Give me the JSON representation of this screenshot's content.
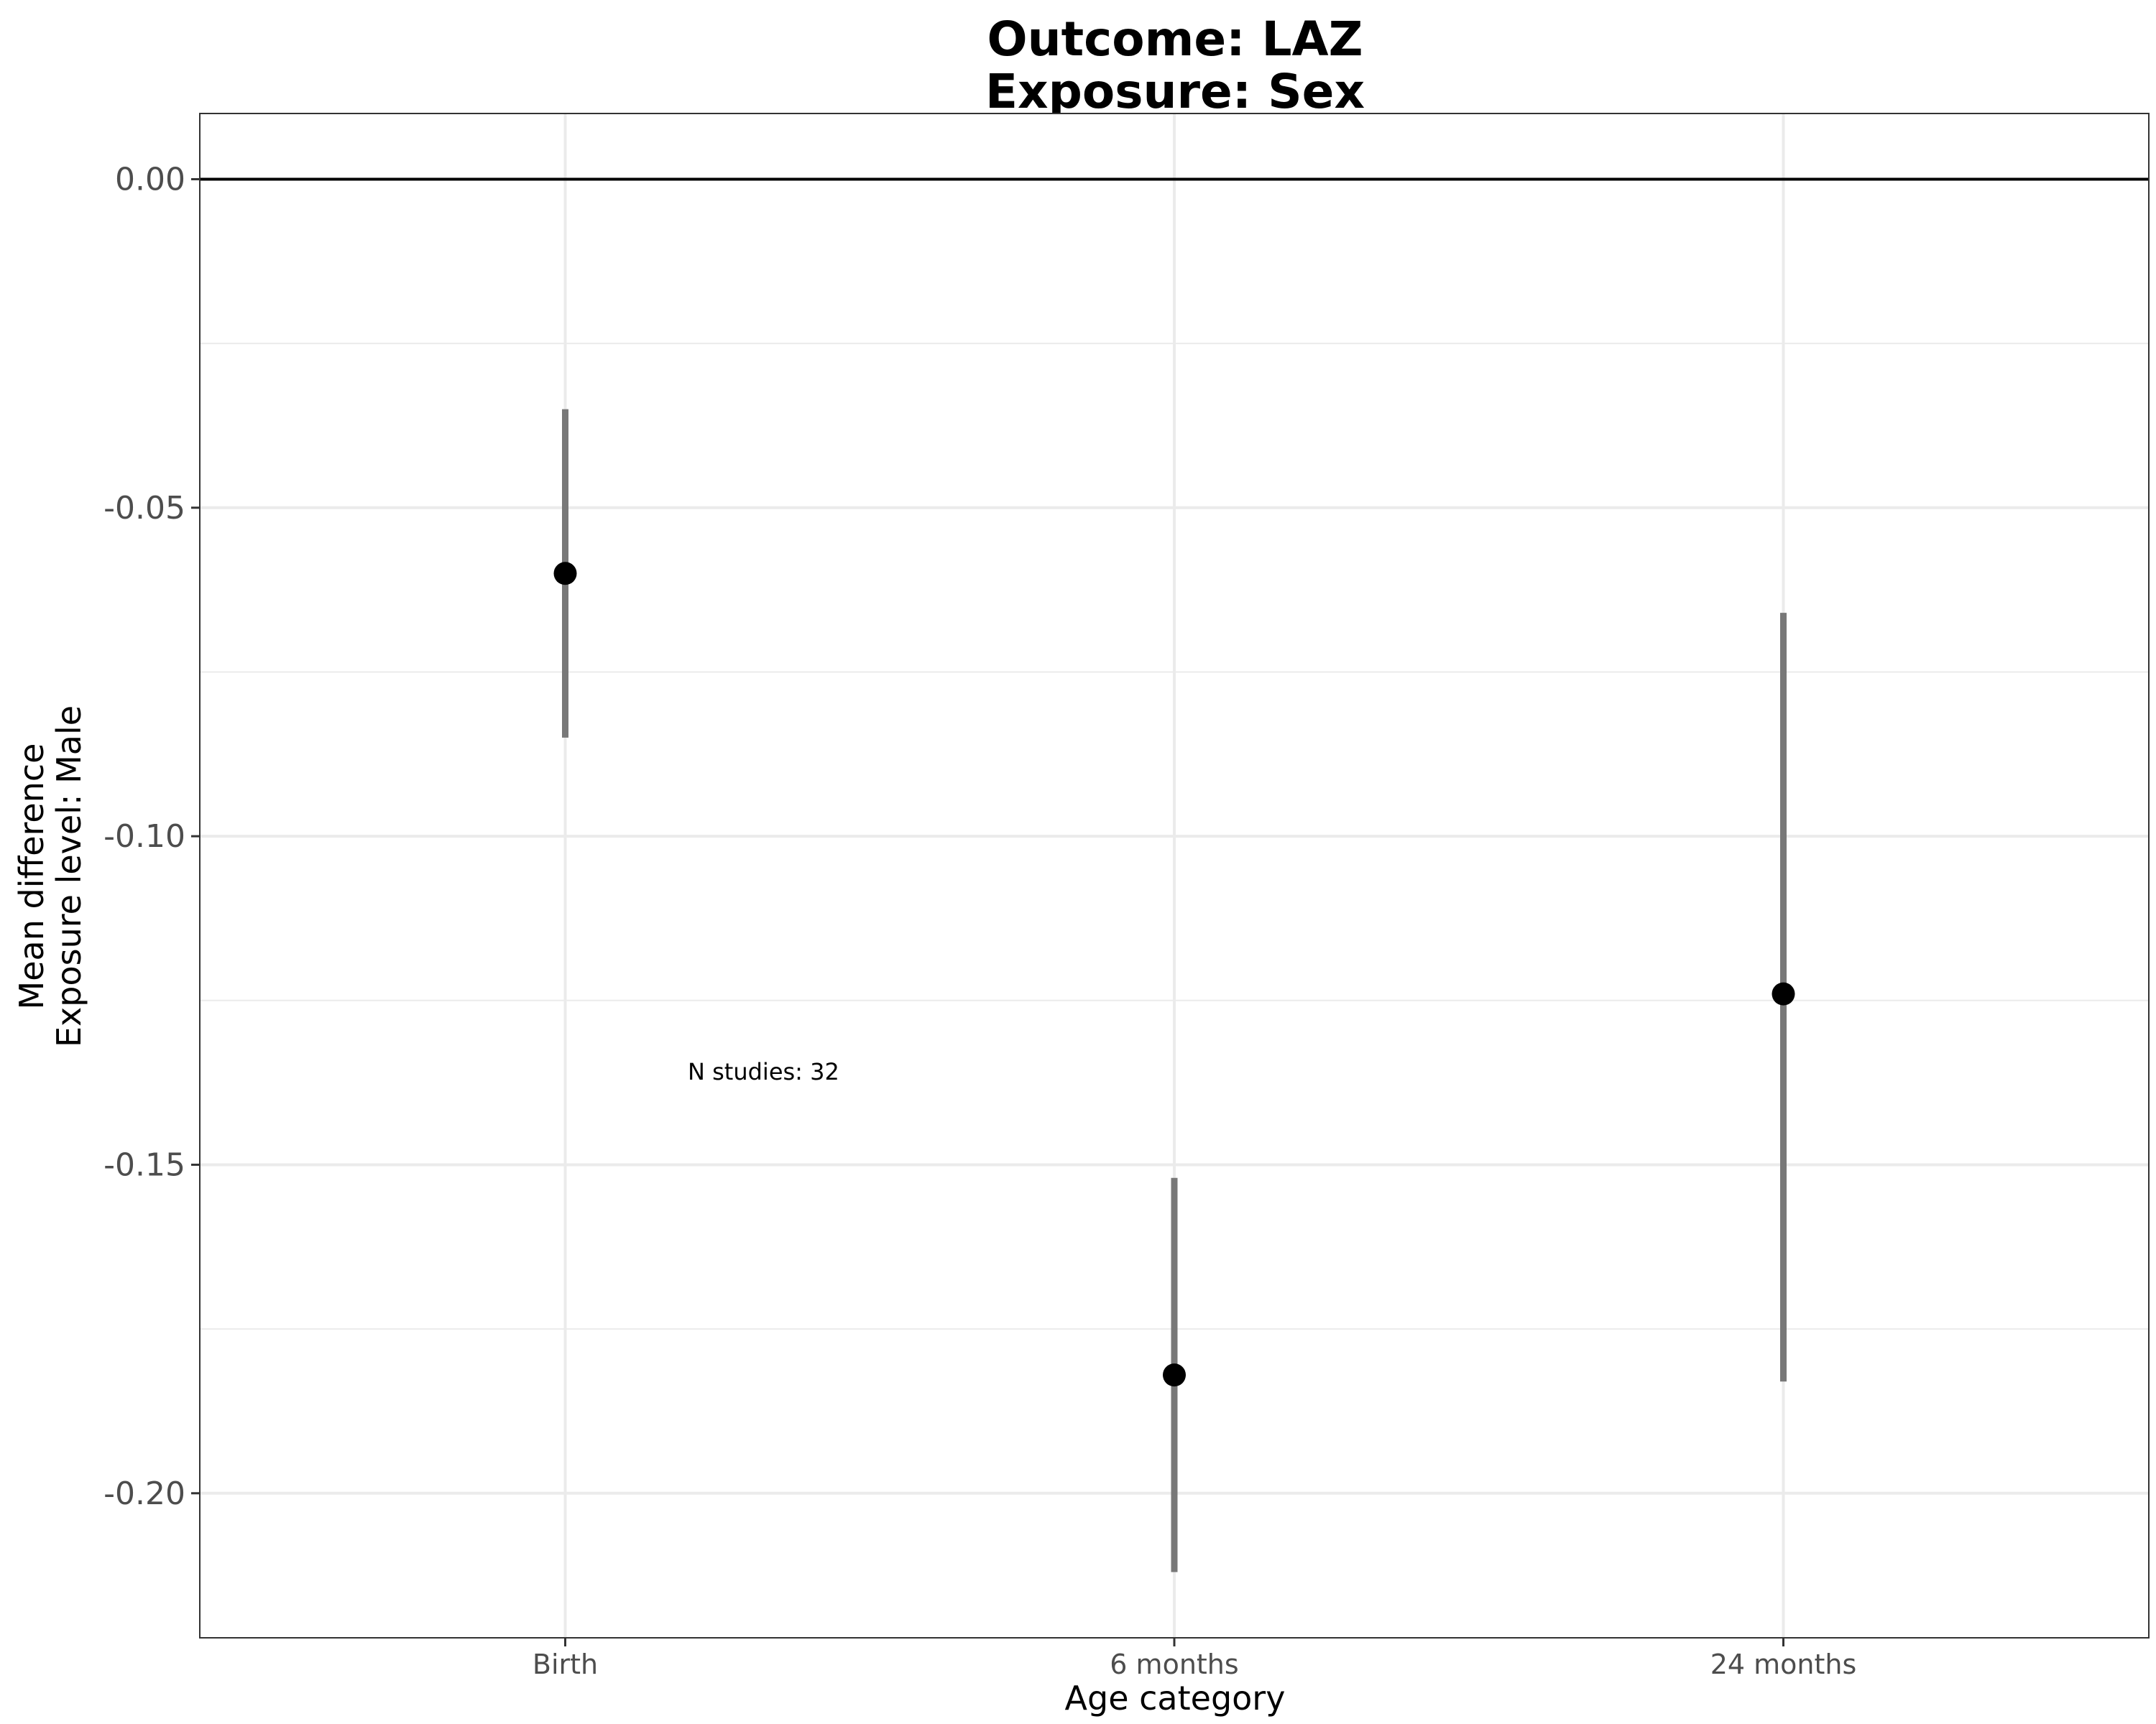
{
  "chart_data": {
    "type": "scatter",
    "title": [
      "Outcome: LAZ",
      "Exposure: Sex"
    ],
    "xlabel": "Age category",
    "ylabel": [
      "Mean difference",
      "Exposure level: Male"
    ],
    "categories": [
      "Birth",
      "6 months",
      "24 months"
    ],
    "series": [
      {
        "values": [
          -0.06,
          -0.182,
          -0.124
        ],
        "lower": [
          -0.085,
          -0.212,
          -0.183
        ],
        "upper": [
          -0.035,
          -0.152,
          -0.066
        ]
      }
    ],
    "ylim": [
      -0.222,
      0.01
    ],
    "yticks": [
      0.0,
      -0.05,
      -0.1,
      -0.15,
      -0.2
    ],
    "ytick_labels": [
      "0.00",
      "-0.05",
      "-0.10",
      "-0.15",
      "-0.20"
    ],
    "reference_line": 0,
    "grid": true,
    "annotation": "N studies: 32",
    "colors": {
      "point": "#000000",
      "errorbar": "#787878",
      "grid": "#ebebeb",
      "reference_line": "#000000",
      "panel_border": "#333333"
    }
  }
}
